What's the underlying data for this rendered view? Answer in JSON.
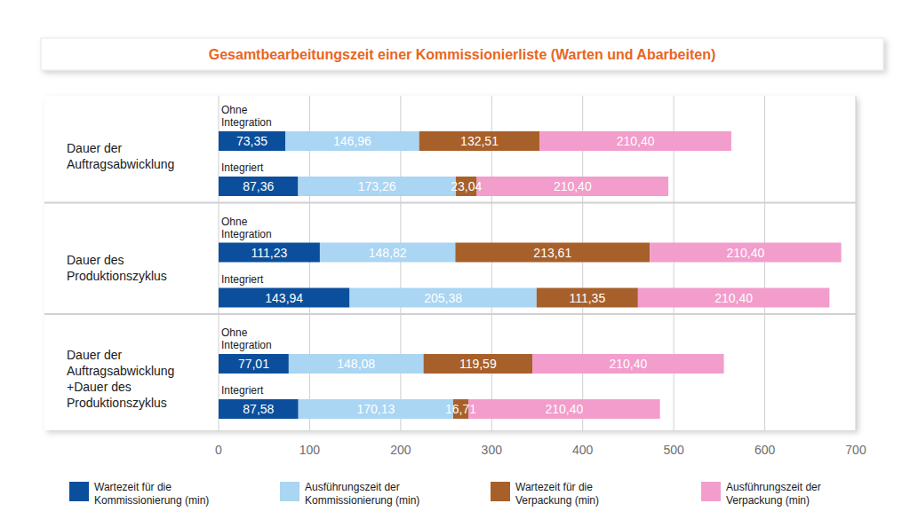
{
  "chart_data": {
    "type": "bar",
    "orientation": "horizontal",
    "stacked": true,
    "data_labels": true,
    "grid": true,
    "tick_labels": "x",
    "legend": "bottom",
    "title": "Gesamtbearbeitungszeit einer Kommissionierliste (Warten und Abarbeiten)",
    "groups": [
      {
        "label": "Dauer der Auftragsabwicklung",
        "categories": [
          "Ohne Integration",
          "Integriert"
        ]
      },
      {
        "label": "Dauer des Produktionszyklus",
        "categories": [
          "Ohne Integration",
          "Integriert"
        ]
      },
      {
        "label": "Dauer der Auftragsabwicklung +Dauer des Produktionszyklus",
        "categories": [
          "Ohne Integration",
          "Integriert"
        ]
      }
    ],
    "xlim": [
      0,
      700
    ],
    "xticks": [
      0,
      100,
      200,
      300,
      400,
      500,
      600,
      700
    ],
    "series": [
      {
        "name": "Wartezeit für die Kommissionierung (min)",
        "color": "#0b4f9c",
        "values": [
          73.35,
          87.36,
          111.23,
          143.94,
          77.01,
          87.58
        ],
        "value_labels": [
          "73,35",
          "87,36",
          "111,23",
          "143,94",
          "77,01",
          "87,58"
        ]
      },
      {
        "name": "Ausführungszeit der Kommissionierung (min)",
        "color": "#aad5f3",
        "values": [
          146.96,
          173.26,
          148.82,
          205.38,
          148.08,
          170.13
        ],
        "value_labels": [
          "146,96",
          "173,26",
          "148,82",
          "205,38",
          "148,08",
          "170,13"
        ]
      },
      {
        "name": "Wartezeit für die Verpackung (min)",
        "color": "#a8602b",
        "values": [
          132.51,
          23.04,
          213.61,
          111.35,
          119.59,
          16.71
        ],
        "value_labels": [
          "132,51",
          "23,04",
          "213,61",
          "111,35",
          "119,59",
          "16,71"
        ]
      },
      {
        "name": "Ausführungszeit der Verpackung (min)",
        "color": "#f29dcc",
        "values": [
          210.4,
          210.4,
          210.4,
          210.4,
          210.4,
          210.4
        ],
        "value_labels": [
          "210,40",
          "210,40",
          "210,40",
          "210,40",
          "210,40",
          "210,40"
        ]
      }
    ]
  }
}
